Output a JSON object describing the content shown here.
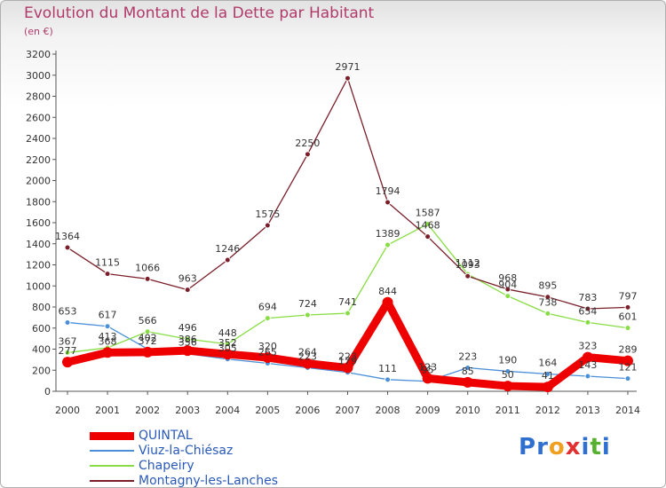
{
  "header": {
    "title": "Evolution du Montant de la Dette par Habitant",
    "subtitle": "(en €)"
  },
  "chart_data": {
    "type": "line",
    "title": "Evolution du Montant de la Dette par Habitant",
    "subtitle": "(en €)",
    "xlabel": "",
    "ylabel": "",
    "x": [
      "2000",
      "2001",
      "2002",
      "2003",
      "2004",
      "2005",
      "2006",
      "2007",
      "2008",
      "2009",
      "2010",
      "2011",
      "2012",
      "2013",
      "2014"
    ],
    "ylim": [
      0,
      3200
    ],
    "yticks": [
      0,
      200,
      400,
      600,
      800,
      1000,
      1200,
      1400,
      1600,
      1800,
      2000,
      2200,
      2400,
      2600,
      2800,
      3000,
      3200
    ],
    "grid": false,
    "legend_position": "bottom-left",
    "series": [
      {
        "name": "QUINTAL",
        "color": "#ee0000",
        "values": [
          277,
          368,
          372,
          386,
          352,
          320,
          264,
          223,
          844,
          123,
          85,
          50,
          41,
          323,
          289
        ]
      },
      {
        "name": "Viuz-la-Chiésaz",
        "color": "#4a90d9",
        "values": [
          653,
          617,
          402,
          356,
          305,
          265,
          223,
          179,
          111,
          95,
          223,
          190,
          164,
          143,
          121
        ]
      },
      {
        "name": "Chapeiry",
        "color": "#88dd44",
        "values": [
          367,
          413,
          566,
          496,
          448,
          694,
          724,
          741,
          1389,
          1587,
          1112,
          904,
          738,
          654,
          601
        ]
      },
      {
        "name": "Montagny-les-Lanches",
        "color": "#7a1f2a",
        "values": [
          1364,
          1115,
          1066,
          963,
          1246,
          1575,
          2250,
          2971,
          1794,
          1468,
          1093,
          968,
          895,
          783,
          797
        ]
      }
    ]
  },
  "legend": {
    "items": [
      {
        "label": "QUINTAL",
        "color": "#ee0000"
      },
      {
        "label": "Viuz-la-Chiésaz",
        "color": "#4a90d9"
      },
      {
        "label": "Chapeiry",
        "color": "#88dd44"
      },
      {
        "label": "Montagny-les-Lanches",
        "color": "#7a1f2a"
      }
    ]
  },
  "logo": {
    "letters": [
      {
        "ch": "P",
        "color": "#2f6fcf"
      },
      {
        "ch": "r",
        "color": "#2f6fcf"
      },
      {
        "ch": "o",
        "color": "#f0a020"
      },
      {
        "ch": "x",
        "color": "#e03030"
      },
      {
        "ch": "i",
        "color": "#2f6fcf"
      },
      {
        "ch": "t",
        "color": "#58b030"
      },
      {
        "ch": "i",
        "color": "#2f6fcf"
      }
    ]
  }
}
